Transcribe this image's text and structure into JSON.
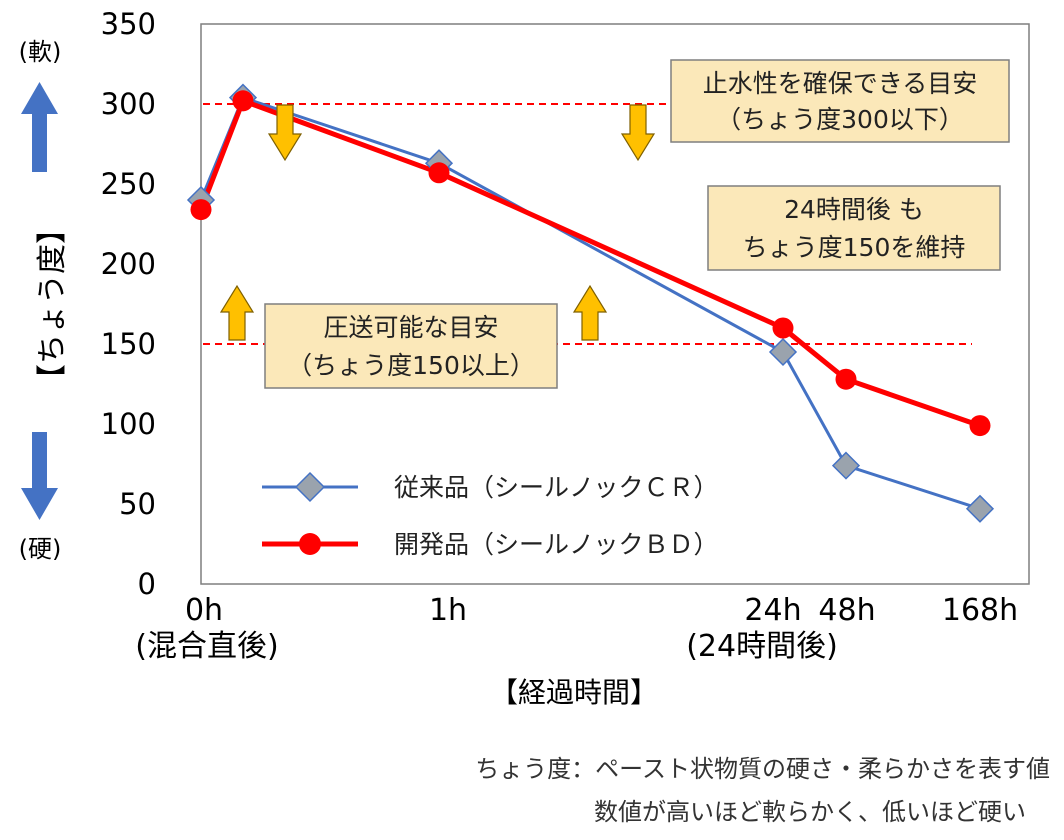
{
  "chart_data": {
    "type": "line",
    "y_axis": {
      "title": "【ちょう度】",
      "ticks": [
        "0",
        "50",
        "100",
        "150",
        "200",
        "250",
        "300",
        "350"
      ],
      "ylim": [
        0,
        350
      ],
      "soft_label": "(軟)",
      "hard_label": "(硬)"
    },
    "x_axis": {
      "title": "【経過時間】",
      "ticks": [
        {
          "label": "0h",
          "sub": "(混合直後)"
        },
        {
          "label": "1h",
          "sub": ""
        },
        {
          "label": "24h",
          "sub": "(24時間後)"
        },
        {
          "label": "48h",
          "sub": ""
        },
        {
          "label": "168h",
          "sub": ""
        }
      ]
    },
    "series": [
      {
        "name": "従来品（シールノックＣＲ）",
        "color": "#4472c4",
        "marker": "diamond",
        "marker_color": "#9aa3ad",
        "points": [
          {
            "x": "0h",
            "y": 240
          },
          {
            "x": "0h+",
            "y": 304
          },
          {
            "x": "1h",
            "y": 263
          },
          {
            "x": "24h",
            "y": 145
          },
          {
            "x": "48h",
            "y": 74
          },
          {
            "x": "168h",
            "y": 47
          }
        ]
      },
      {
        "name": "開発品（シールノックＢＤ）",
        "color": "#ff0000",
        "marker": "circle",
        "marker_color": "#ff0000",
        "points": [
          {
            "x": "0h",
            "y": 234
          },
          {
            "x": "0h+",
            "y": 302
          },
          {
            "x": "1h",
            "y": 257
          },
          {
            "x": "24h",
            "y": 160
          },
          {
            "x": "48h",
            "y": 128
          },
          {
            "x": "168h",
            "y": 99
          }
        ]
      }
    ],
    "reference_lines": [
      {
        "y": 300,
        "color": "#ff0000",
        "style": "dashed"
      },
      {
        "y": 150,
        "color": "#ff0000",
        "style": "dashed"
      }
    ],
    "annotations": [
      {
        "lines": [
          "止水性を確保できる目安",
          "（ちょう度300以下）"
        ]
      },
      {
        "lines": [
          "24時間後 も",
          "ちょう度150を維持"
        ]
      },
      {
        "lines": [
          "圧送可能な目安",
          "（ちょう度150以上）"
        ]
      }
    ],
    "legend_position": "bottom-left",
    "footnotes": [
      "ちょう度：ペースト状物質の硬さ・柔らかさを表す値",
      "数値が高いほど軟らかく、低いほど硬い"
    ],
    "colors": {
      "annotation_fill": "#fbe8b9",
      "arrow_fill": "#ffc000",
      "up_down_arrow": "#4472c4"
    }
  }
}
